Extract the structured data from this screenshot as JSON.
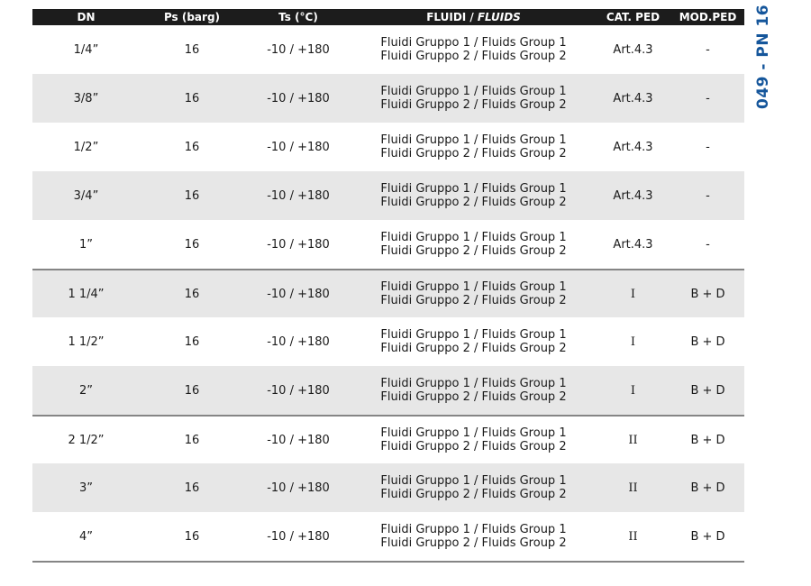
{
  "page": {
    "background": "#ffffff"
  },
  "side_label": {
    "text": "049 - PN 16",
    "color": "#15569b"
  },
  "table": {
    "colors": {
      "header_bg": "#1c1c1c",
      "header_text": "#ffffff",
      "shaded_row": "#e7e7e7",
      "separator_line": "#858585",
      "body_text": "#1a1a1a"
    },
    "header": {
      "dn": "DN",
      "ps": "Ps (barg)",
      "ts": "Ts (°C)",
      "fluids_normal": "FLUIDI /",
      "fluids_italic": "FLUIDS",
      "cat": "CAT. PED",
      "mod": "MOD.PED"
    },
    "rows": [
      {
        "dn": "1/4”",
        "ps": "16",
        "ts": "-10 / +180",
        "fluids": [
          "Fluidi Gruppo 1 / Fluids Group 1",
          "Fluidi Gruppo 2 / Fluids Group 2"
        ],
        "cat": "Art.4.3",
        "mod": "-"
      },
      {
        "dn": "3/8”",
        "ps": "16",
        "ts": "-10 / +180",
        "fluids": [
          "Fluidi Gruppo 1 / Fluids Group 1",
          "Fluidi Gruppo 2 / Fluids Group 2"
        ],
        "cat": "Art.4.3",
        "mod": "-"
      },
      {
        "dn": "1/2”",
        "ps": "16",
        "ts": "-10 / +180",
        "fluids": [
          "Fluidi Gruppo 1 / Fluids Group 1",
          "Fluidi Gruppo 2 / Fluids Group 2"
        ],
        "cat": "Art.4.3",
        "mod": "-"
      },
      {
        "dn": "3/4”",
        "ps": "16",
        "ts": "-10 / +180",
        "fluids": [
          "Fluidi Gruppo 1 / Fluids Group 1",
          "Fluidi Gruppo 2 / Fluids Group 2"
        ],
        "cat": "Art.4.3",
        "mod": "-"
      },
      {
        "dn": "1”",
        "ps": "16",
        "ts": "-10 / +180",
        "fluids": [
          "Fluidi Gruppo 1 / Fluids Group 1",
          "Fluidi Gruppo 2 / Fluids Group 2"
        ],
        "cat": "Art.4.3",
        "mod": "-"
      },
      {
        "dn": "1 1/4”",
        "ps": "16",
        "ts": "-10 / +180",
        "fluids": [
          "Fluidi Gruppo 1 / Fluids Group 1",
          "Fluidi Gruppo 2 / Fluids Group 2"
        ],
        "cat": "I",
        "mod": "B + D"
      },
      {
        "dn": "1 1/2”",
        "ps": "16",
        "ts": "-10 / +180",
        "fluids": [
          "Fluidi Gruppo 1 / Fluids Group 1",
          "Fluidi Gruppo 2 / Fluids Group 2"
        ],
        "cat": "I",
        "mod": "B + D"
      },
      {
        "dn": "2”",
        "ps": "16",
        "ts": "-10 / +180",
        "fluids": [
          "Fluidi Gruppo 1 / Fluids Group 1",
          "Fluidi Gruppo 2 / Fluids Group 2"
        ],
        "cat": "I",
        "mod": "B + D"
      },
      {
        "dn": "2 1/2”",
        "ps": "16",
        "ts": "-10 / +180",
        "fluids": [
          "Fluidi Gruppo 1 / Fluids Group 1",
          "Fluidi Gruppo 2 / Fluids Group 2"
        ],
        "cat": "II",
        "mod": "B + D"
      },
      {
        "dn": "3”",
        "ps": "16",
        "ts": "-10 / +180",
        "fluids": [
          "Fluidi Gruppo 1 / Fluids Group 1",
          "Fluidi Gruppo 2 / Fluids Group 2"
        ],
        "cat": "II",
        "mod": "B + D"
      },
      {
        "dn": "4”",
        "ps": "16",
        "ts": "-10 / +180",
        "fluids": [
          "Fluidi Gruppo 1 / Fluids Group 1",
          "Fluidi Gruppo 2 / Fluids Group 2"
        ],
        "cat": "II",
        "mod": "B + D"
      }
    ]
  }
}
